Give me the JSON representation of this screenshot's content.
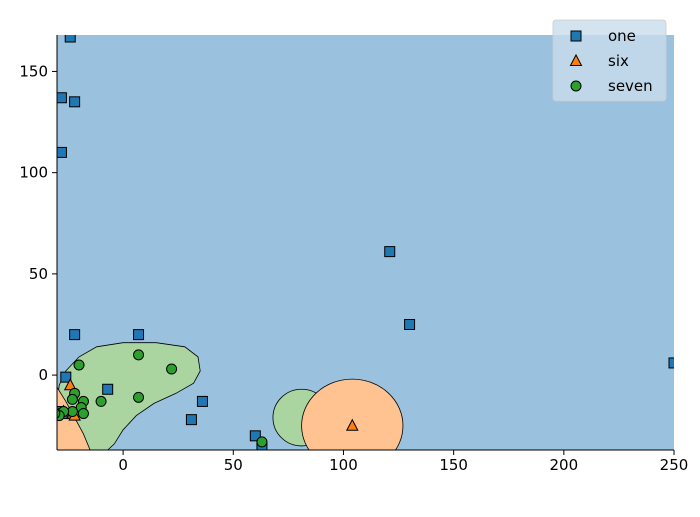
{
  "chart_data": {
    "type": "scatter",
    "title": "",
    "xlabel": "",
    "ylabel": "",
    "xlim": [
      -30,
      250
    ],
    "ylim": [
      -37,
      168
    ],
    "x_ticks": [
      0,
      50,
      100,
      150,
      200,
      250
    ],
    "y_ticks": [
      0,
      50,
      100,
      150
    ],
    "legend_position": "top-right",
    "grid": false,
    "colors": {
      "background_region": "#9ac1de",
      "six_region": "#ffc291",
      "seven_region": "#aad4a0",
      "one": "#1f77b4",
      "six": "#ff7f0e",
      "seven": "#2ca02c"
    },
    "series": [
      {
        "name": "one",
        "marker": "square",
        "points": [
          [
            -24,
            167
          ],
          [
            -28,
            137
          ],
          [
            -22,
            135
          ],
          [
            -28,
            110
          ],
          [
            121,
            61
          ],
          [
            130,
            25
          ],
          [
            -22,
            20
          ],
          [
            7,
            20
          ],
          [
            250,
            6
          ],
          [
            -26,
            -1
          ],
          [
            -7,
            -7
          ],
          [
            36,
            -13
          ],
          [
            31,
            -22
          ],
          [
            60,
            -30
          ],
          [
            63,
            -36
          ],
          [
            -29,
            -18
          ],
          [
            -27,
            -19
          ]
        ]
      },
      {
        "name": "six",
        "marker": "triangle",
        "points": [
          [
            104,
            -25
          ],
          [
            -24,
            -5
          ],
          [
            -23,
            -19
          ],
          [
            -22,
            -20
          ],
          [
            -27,
            -18
          ]
        ]
      },
      {
        "name": "seven",
        "marker": "circle",
        "points": [
          [
            -20,
            5
          ],
          [
            7,
            10
          ],
          [
            22,
            3
          ],
          [
            7,
            -11
          ],
          [
            -10,
            -13
          ],
          [
            -22,
            -9
          ],
          [
            -23,
            -12
          ],
          [
            -18,
            -13
          ],
          [
            -19,
            -16
          ],
          [
            -23,
            -18
          ],
          [
            -27,
            -18
          ],
          [
            -29,
            -20
          ],
          [
            -31,
            -19
          ],
          [
            -18,
            -19
          ],
          [
            63,
            -33
          ]
        ]
      }
    ]
  }
}
